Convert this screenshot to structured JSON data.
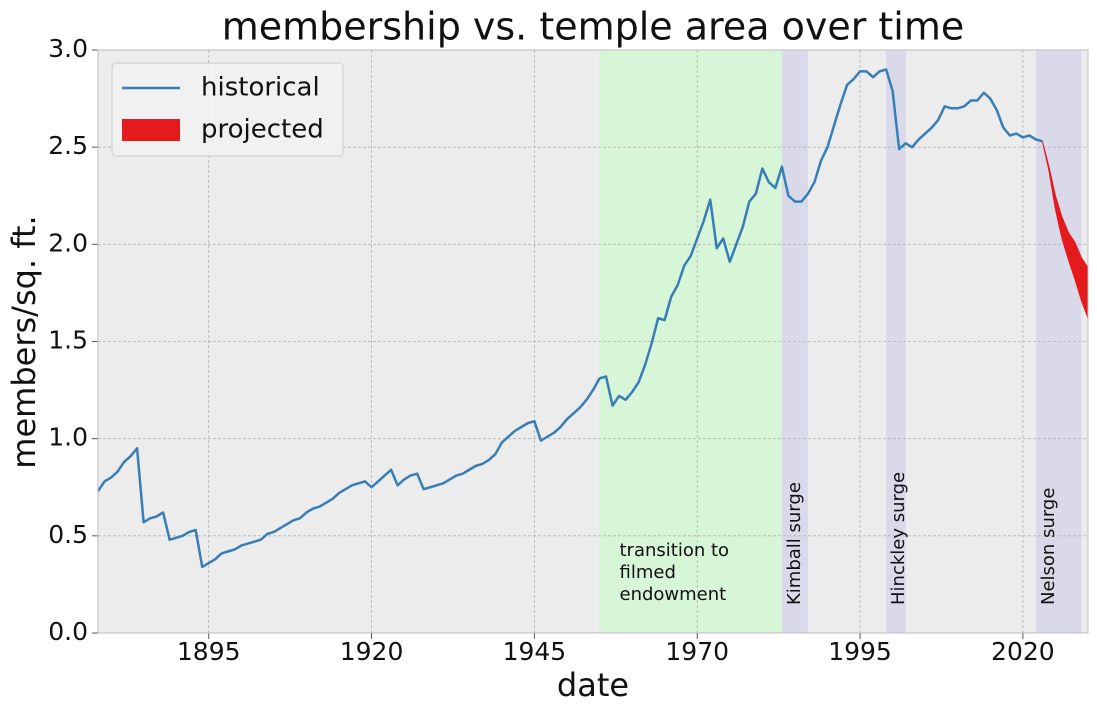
{
  "chart_data": {
    "type": "line",
    "title": "membership vs. temple area over time",
    "xlabel": "date",
    "ylabel": "members/sq. ft.",
    "xlim": [
      1878,
      2030
    ],
    "ylim": [
      0,
      3
    ],
    "xticks": [
      1895,
      1920,
      1945,
      1970,
      1995,
      2020
    ],
    "yticks": [
      {
        "value": 0,
        "label": "0.0"
      },
      {
        "value": 0.5,
        "label": "0.5"
      },
      {
        "value": 1,
        "label": "1.0"
      },
      {
        "value": 1.5,
        "label": "1.5"
      },
      {
        "value": 2,
        "label": "2.0"
      },
      {
        "value": 2.5,
        "label": "2.5"
      },
      {
        "value": 3,
        "label": "3.0"
      }
    ],
    "grid": true,
    "legend": "upper left",
    "spans": [
      {
        "start": 1955,
        "end": 1983,
        "color": "#d7f5d7",
        "label": [
          "transition to",
          "filmed",
          "endowment"
        ],
        "rotated": false
      },
      {
        "start": 1983,
        "end": 1987,
        "color": "#d9d9e9",
        "label": [
          "Kimball surge"
        ],
        "rotated": true
      },
      {
        "start": 1999,
        "end": 2002,
        "color": "#d9d9e9",
        "label": [
          "Hinckley surge"
        ],
        "rotated": true
      },
      {
        "start": 2022,
        "end": 2029,
        "color": "#d9d9e9",
        "label": [
          "Nelson surge"
        ],
        "rotated": true
      }
    ],
    "series": [
      {
        "name": "historical",
        "color": "#377eb8",
        "x": [
          1878,
          1879,
          1880,
          1881,
          1882,
          1883,
          1884,
          1885,
          1886,
          1887,
          1888,
          1889,
          1890,
          1891,
          1892,
          1893,
          1894,
          1895,
          1896,
          1897,
          1898,
          1899,
          1900,
          1901,
          1902,
          1903,
          1904,
          1905,
          1906,
          1907,
          1908,
          1909,
          1910,
          1911,
          1912,
          1913,
          1914,
          1915,
          1916,
          1917,
          1918,
          1919,
          1920,
          1921,
          1922,
          1923,
          1924,
          1925,
          1926,
          1927,
          1928,
          1929,
          1930,
          1931,
          1932,
          1933,
          1934,
          1935,
          1936,
          1937,
          1938,
          1939,
          1940,
          1941,
          1942,
          1943,
          1944,
          1945,
          1946,
          1947,
          1948,
          1949,
          1950,
          1951,
          1952,
          1953,
          1954,
          1955,
          1956,
          1957,
          1958,
          1959,
          1960,
          1961,
          1962,
          1963,
          1964,
          1965,
          1966,
          1967,
          1968,
          1969,
          1970,
          1971,
          1972,
          1973,
          1974,
          1975,
          1976,
          1977,
          1978,
          1979,
          1980,
          1981,
          1982,
          1983,
          1984,
          1985,
          1986,
          1987,
          1988,
          1989,
          1990,
          1991,
          1992,
          1993,
          1994,
          1995,
          1996,
          1997,
          1998,
          1999,
          2000,
          2001,
          2002,
          2003,
          2004,
          2005,
          2006,
          2007,
          2008,
          2009,
          2010,
          2011,
          2012,
          2013,
          2014,
          2015,
          2016,
          2017,
          2018,
          2019,
          2020,
          2021,
          2022,
          2023
        ],
        "values": [
          0.73,
          0.78,
          0.8,
          0.83,
          0.88,
          0.91,
          0.95,
          0.57,
          0.59,
          0.6,
          0.62,
          0.48,
          0.49,
          0.5,
          0.52,
          0.53,
          0.34,
          0.36,
          0.38,
          0.41,
          0.42,
          0.43,
          0.45,
          0.46,
          0.47,
          0.48,
          0.51,
          0.52,
          0.54,
          0.56,
          0.58,
          0.59,
          0.62,
          0.64,
          0.65,
          0.67,
          0.69,
          0.72,
          0.74,
          0.76,
          0.77,
          0.78,
          0.75,
          0.78,
          0.81,
          0.84,
          0.76,
          0.79,
          0.81,
          0.82,
          0.74,
          0.75,
          0.76,
          0.77,
          0.79,
          0.81,
          0.82,
          0.84,
          0.86,
          0.87,
          0.89,
          0.92,
          0.98,
          1.01,
          1.04,
          1.06,
          1.08,
          1.09,
          0.99,
          1.01,
          1.03,
          1.06,
          1.1,
          1.13,
          1.16,
          1.2,
          1.25,
          1.31,
          1.32,
          1.17,
          1.22,
          1.2,
          1.24,
          1.29,
          1.38,
          1.49,
          1.62,
          1.61,
          1.73,
          1.79,
          1.89,
          1.94,
          2.03,
          2.12,
          2.23,
          1.98,
          2.03,
          1.91,
          2.0,
          2.09,
          2.22,
          2.26,
          2.39,
          2.32,
          2.29,
          2.4,
          2.25,
          2.22,
          2.22,
          2.26,
          2.32,
          2.43,
          2.5,
          2.61,
          2.72,
          2.82,
          2.85,
          2.89,
          2.89,
          2.86,
          2.89,
          2.9,
          2.79,
          2.49,
          2.52,
          2.5,
          2.54,
          2.57,
          2.6,
          2.64,
          2.71,
          2.7,
          2.7,
          2.71,
          2.74,
          2.74,
          2.78,
          2.75,
          2.69,
          2.6,
          2.56,
          2.57,
          2.55,
          2.56,
          2.54,
          2.53
        ]
      },
      {
        "name": "projected",
        "color": "#e41a1c",
        "x": [
          2023,
          2024,
          2025,
          2026,
          2027,
          2028,
          2029,
          2030
        ],
        "upper": [
          2.53,
          2.4,
          2.25,
          2.14,
          2.06,
          2.01,
          1.93,
          1.88
        ],
        "lower": [
          2.53,
          2.38,
          2.18,
          2.03,
          1.92,
          1.82,
          1.71,
          1.62
        ]
      }
    ]
  }
}
